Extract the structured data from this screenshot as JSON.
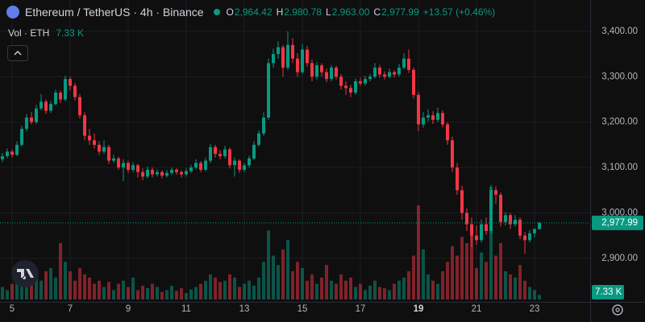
{
  "chart_data": {
    "type": "candlestick",
    "legend": {
      "symbol": "Ethereum / TetherUS · 4h · Binance",
      "fields": [
        {
          "key": "O",
          "value": "2,964.42"
        },
        {
          "key": "H",
          "value": "2,980.78"
        },
        {
          "key": "L",
          "value": "2,963.00"
        },
        {
          "key": "C",
          "value": "2,977.99"
        }
      ],
      "change": "+13.57 (+0.46%)"
    },
    "volume_title": "Vol · ETH",
    "volume_label": "7.33 K",
    "last_price_label": "2,977.99",
    "up_color": "#089981",
    "down_color": "#f23645",
    "grid": true,
    "ylim": [
      2804,
      3469
    ],
    "yticks": [
      {
        "value": 2900,
        "label": "2,900.00"
      },
      {
        "value": 3000,
        "label": "3,000.00"
      },
      {
        "value": 3100,
        "label": "3,100.00"
      },
      {
        "value": 3200,
        "label": "3,200.00"
      },
      {
        "value": 3300,
        "label": "3,300.00"
      },
      {
        "value": 3400,
        "label": "3,400.00"
      }
    ],
    "xticks": [
      {
        "value": 2,
        "label": "5"
      },
      {
        "value": 14,
        "label": "7"
      },
      {
        "value": 26,
        "label": "9"
      },
      {
        "value": 38,
        "label": "11"
      },
      {
        "value": 50,
        "label": "13"
      },
      {
        "value": 62,
        "label": "15"
      },
      {
        "value": 74,
        "label": "17"
      },
      {
        "value": 86,
        "label": "19",
        "bold": true
      },
      {
        "value": 98,
        "label": "21"
      },
      {
        "value": 110,
        "label": "23"
      }
    ],
    "ohlc": [
      [
        3118,
        3132,
        3112,
        3125
      ],
      [
        3125,
        3142,
        3120,
        3135
      ],
      [
        3135,
        3140,
        3122,
        3128
      ],
      [
        3128,
        3158,
        3125,
        3150
      ],
      [
        3150,
        3192,
        3146,
        3185
      ],
      [
        3185,
        3218,
        3180,
        3210
      ],
      [
        3210,
        3222,
        3195,
        3200
      ],
      [
        3200,
        3238,
        3196,
        3230
      ],
      [
        3230,
        3262,
        3226,
        3245
      ],
      [
        3245,
        3250,
        3218,
        3225
      ],
      [
        3225,
        3246,
        3220,
        3240
      ],
      [
        3240,
        3272,
        3236,
        3265
      ],
      [
        3265,
        3270,
        3242,
        3250
      ],
      [
        3250,
        3302,
        3246,
        3295
      ],
      [
        3295,
        3300,
        3270,
        3280
      ],
      [
        3280,
        3286,
        3248,
        3255
      ],
      [
        3255,
        3262,
        3208,
        3215
      ],
      [
        3215,
        3222,
        3160,
        3170
      ],
      [
        3170,
        3185,
        3150,
        3160
      ],
      [
        3160,
        3175,
        3142,
        3150
      ],
      [
        3150,
        3158,
        3128,
        3135
      ],
      [
        3135,
        3160,
        3130,
        3145
      ],
      [
        3145,
        3150,
        3108,
        3115
      ],
      [
        3115,
        3128,
        3110,
        3120
      ],
      [
        3120,
        3124,
        3095,
        3100
      ],
      [
        3100,
        3118,
        3070,
        3110
      ],
      [
        3110,
        3115,
        3088,
        3095
      ],
      [
        3095,
        3112,
        3090,
        3105
      ],
      [
        3105,
        3108,
        3078,
        3090
      ],
      [
        3090,
        3098,
        3072,
        3080
      ],
      [
        3080,
        3102,
        3076,
        3095
      ],
      [
        3095,
        3100,
        3078,
        3085
      ],
      [
        3085,
        3096,
        3080,
        3090
      ],
      [
        3090,
        3094,
        3076,
        3082
      ],
      [
        3082,
        3094,
        3078,
        3088
      ],
      [
        3088,
        3100,
        3084,
        3095
      ],
      [
        3095,
        3098,
        3084,
        3090
      ],
      [
        3090,
        3094,
        3078,
        3085
      ],
      [
        3085,
        3098,
        3080,
        3092
      ],
      [
        3092,
        3106,
        3088,
        3100
      ],
      [
        3100,
        3118,
        3096,
        3110
      ],
      [
        3110,
        3114,
        3090,
        3095
      ],
      [
        3095,
        3122,
        3092,
        3115
      ],
      [
        3115,
        3152,
        3110,
        3145
      ],
      [
        3145,
        3150,
        3122,
        3130
      ],
      [
        3130,
        3138,
        3118,
        3125
      ],
      [
        3125,
        3148,
        3120,
        3140
      ],
      [
        3140,
        3144,
        3098,
        3105
      ],
      [
        3105,
        3122,
        3080,
        3115
      ],
      [
        3115,
        3118,
        3088,
        3095
      ],
      [
        3095,
        3110,
        3090,
        3105
      ],
      [
        3105,
        3126,
        3100,
        3120
      ],
      [
        3120,
        3158,
        3116,
        3150
      ],
      [
        3150,
        3182,
        3146,
        3175
      ],
      [
        3175,
        3222,
        3170,
        3210
      ],
      [
        3210,
        3340,
        3205,
        3330
      ],
      [
        3330,
        3362,
        3320,
        3350
      ],
      [
        3350,
        3378,
        3340,
        3365
      ],
      [
        3365,
        3370,
        3300,
        3320
      ],
      [
        3320,
        3400,
        3315,
        3370
      ],
      [
        3370,
        3385,
        3330,
        3340
      ],
      [
        3340,
        3352,
        3300,
        3310
      ],
      [
        3310,
        3372,
        3306,
        3360
      ],
      [
        3360,
        3368,
        3322,
        3330
      ],
      [
        3330,
        3338,
        3290,
        3300
      ],
      [
        3300,
        3332,
        3294,
        3325
      ],
      [
        3325,
        3330,
        3300,
        3310
      ],
      [
        3310,
        3318,
        3288,
        3295
      ],
      [
        3295,
        3326,
        3290,
        3320
      ],
      [
        3320,
        3324,
        3294,
        3300
      ],
      [
        3300,
        3306,
        3272,
        3280
      ],
      [
        3280,
        3290,
        3260,
        3275
      ],
      [
        3275,
        3282,
        3255,
        3265
      ],
      [
        3265,
        3296,
        3260,
        3290
      ],
      [
        3290,
        3298,
        3280,
        3285
      ],
      [
        3285,
        3302,
        3280,
        3295
      ],
      [
        3295,
        3306,
        3290,
        3300
      ],
      [
        3300,
        3330,
        3296,
        3320
      ],
      [
        3320,
        3326,
        3298,
        3305
      ],
      [
        3305,
        3312,
        3294,
        3300
      ],
      [
        3300,
        3318,
        3296,
        3310
      ],
      [
        3310,
        3314,
        3298,
        3305
      ],
      [
        3305,
        3328,
        3300,
        3320
      ],
      [
        3320,
        3352,
        3316,
        3340
      ],
      [
        3340,
        3360,
        3308,
        3315
      ],
      [
        3315,
        3320,
        3252,
        3260
      ],
      [
        3260,
        3266,
        3180,
        3195
      ],
      [
        3195,
        3222,
        3188,
        3210
      ],
      [
        3210,
        3228,
        3202,
        3215
      ],
      [
        3215,
        3224,
        3196,
        3205
      ],
      [
        3205,
        3232,
        3200,
        3220
      ],
      [
        3220,
        3226,
        3188,
        3195
      ],
      [
        3195,
        3200,
        3150,
        3160
      ],
      [
        3160,
        3168,
        3090,
        3100
      ],
      [
        3100,
        3110,
        3040,
        3050
      ],
      [
        3050,
        3060,
        2985,
        3000
      ],
      [
        3000,
        3010,
        2960,
        2975
      ],
      [
        2975,
        2990,
        2925,
        2950
      ],
      [
        2950,
        2972,
        2930,
        2940
      ],
      [
        2940,
        2985,
        2935,
        2975
      ],
      [
        2975,
        2990,
        2952,
        2960
      ],
      [
        2960,
        3062,
        2955,
        3050
      ],
      [
        3050,
        3058,
        3020,
        3040
      ],
      [
        3040,
        3045,
        2970,
        2980
      ],
      [
        2980,
        3002,
        2972,
        2995
      ],
      [
        2995,
        3000,
        2965,
        2975
      ],
      [
        2975,
        2995,
        2970,
        2985
      ],
      [
        2985,
        2990,
        2942,
        2950
      ],
      [
        2950,
        2958,
        2910,
        2940
      ],
      [
        2940,
        2962,
        2935,
        2955
      ],
      [
        2955,
        2966,
        2946,
        2964.42
      ],
      [
        2964.42,
        2980.78,
        2963,
        2977.99
      ]
    ],
    "volume": [
      20,
      15,
      25,
      30,
      22,
      35,
      28,
      40,
      30,
      45,
      50,
      35,
      90,
      60,
      45,
      30,
      50,
      40,
      35,
      25,
      30,
      20,
      28,
      15,
      25,
      30,
      20,
      35,
      15,
      22,
      18,
      25,
      20,
      12,
      15,
      22,
      14,
      18,
      10,
      16,
      20,
      25,
      30,
      40,
      35,
      28,
      30,
      40,
      35,
      20,
      25,
      30,
      22,
      35,
      60,
      110,
      70,
      55,
      80,
      95,
      45,
      60,
      50,
      30,
      40,
      25,
      35,
      55,
      30,
      25,
      40,
      30,
      35,
      20,
      25,
      15,
      22,
      30,
      20,
      18,
      15,
      25,
      30,
      35,
      45,
      70,
      150,
      80,
      40,
      30,
      25,
      45,
      60,
      85,
      70,
      100,
      90,
      110,
      50,
      75,
      60,
      180,
      70,
      90,
      45,
      40,
      35,
      55,
      30,
      20,
      15,
      7.33
    ]
  }
}
